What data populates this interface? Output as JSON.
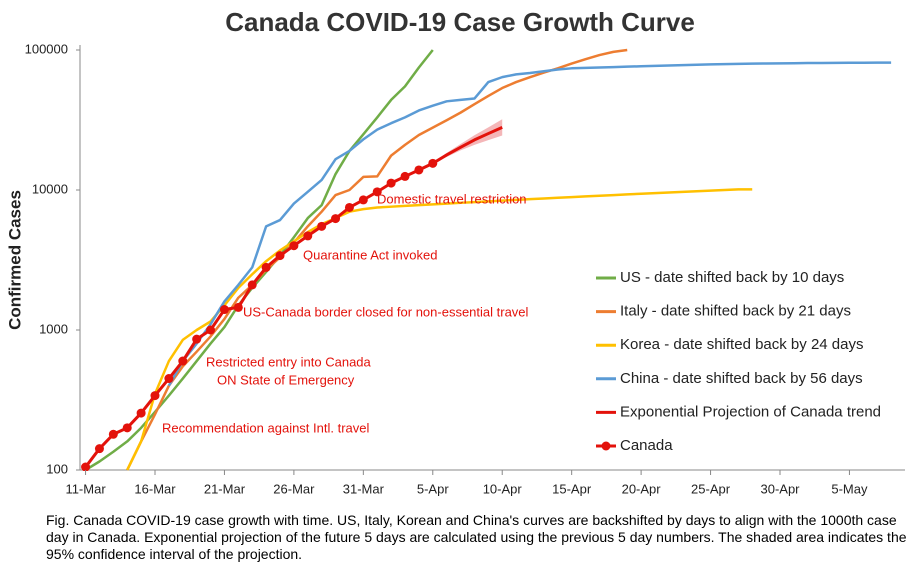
{
  "chart_data": {
    "type": "line",
    "title": "Canada COVID-19 Case Growth Curve",
    "y_label": "Confirmed Cases",
    "log_y": true,
    "xlim": [
      -0.4,
      59
    ],
    "xticks": [
      {
        "value": 0,
        "label": "11-Mar"
      },
      {
        "value": 5,
        "label": "16-Mar"
      },
      {
        "value": 10,
        "label": "21-Mar"
      },
      {
        "value": 15,
        "label": "26-Mar"
      },
      {
        "value": 20,
        "label": "31-Mar"
      },
      {
        "value": 25,
        "label": "5-Apr"
      },
      {
        "value": 30,
        "label": "10-Apr"
      },
      {
        "value": 35,
        "label": "15-Apr"
      },
      {
        "value": 40,
        "label": "20-Apr"
      },
      {
        "value": 45,
        "label": "25-Apr"
      },
      {
        "value": 50,
        "label": "30-Apr"
      },
      {
        "value": 55,
        "label": "5-May"
      }
    ],
    "ylim": [
      100,
      100000
    ],
    "yticks": [
      100,
      1000,
      10000,
      100000
    ],
    "series": [
      {
        "name": "US - date shifted back by 10 days",
        "color": "#70ad47",
        "x": [
          0,
          1,
          2,
          3,
          4,
          5,
          6,
          7,
          8,
          9,
          10,
          11,
          12,
          13,
          14,
          15,
          16,
          17,
          18,
          19,
          20,
          21,
          22,
          23,
          24,
          25
        ],
        "values": [
          100,
          115,
          135,
          160,
          200,
          260,
          340,
          450,
          600,
          800,
          1050,
          1500,
          2000,
          2600,
          3400,
          4600,
          6300,
          7800,
          13000,
          19000,
          25000,
          33000,
          44000,
          55000,
          75000,
          100000
        ]
      },
      {
        "name": "Italy - date shifted back by 21 days",
        "color": "#ed7d31",
        "x": [
          3,
          4,
          5,
          6,
          7,
          8,
          9,
          10,
          11,
          12,
          13,
          14,
          15,
          16,
          17,
          18,
          19,
          20,
          21,
          22,
          23,
          24,
          25,
          26,
          27,
          28,
          29,
          30,
          31,
          32,
          33,
          34,
          35,
          36,
          37,
          38,
          39
        ],
        "values": [
          100,
          160,
          250,
          400,
          550,
          700,
          900,
          1200,
          1700,
          2100,
          2700,
          3300,
          4200,
          5500,
          7000,
          9200,
          10000,
          12400,
          12500,
          17600,
          21000,
          24700,
          27900,
          31500,
          35700,
          41000,
          47000,
          53500,
          59000,
          63900,
          69000,
          74000,
          80000,
          86000,
          92000,
          97000,
          100000
        ]
      },
      {
        "name": "Korea - date shifted back by 24 days",
        "color": "#ffc000",
        "x": [
          3,
          4,
          5,
          6,
          7,
          8,
          9,
          10,
          11,
          12,
          13,
          14,
          15,
          16,
          17,
          18,
          19,
          20,
          21,
          22,
          23,
          24,
          25,
          26,
          27,
          28,
          29,
          30,
          31,
          32,
          33,
          34,
          35,
          36,
          37,
          38,
          39,
          40,
          41,
          42,
          43,
          44,
          45,
          46,
          47,
          48
        ],
        "values": [
          100,
          160,
          350,
          600,
          850,
          1000,
          1150,
          1500,
          2000,
          2500,
          3100,
          3700,
          4300,
          5000,
          5700,
          6300,
          7000,
          7300,
          7500,
          7600,
          7700,
          7800,
          7900,
          8000,
          8100,
          8200,
          8300,
          8400,
          8500,
          8600,
          8700,
          8800,
          8900,
          9000,
          9100,
          9200,
          9300,
          9400,
          9500,
          9600,
          9700,
          9800,
          9900,
          10000,
          10100,
          10100
        ]
      },
      {
        "name": "China - date shifted back by 56 days",
        "color": "#5b9bd5",
        "x": [
          6,
          7,
          8,
          9,
          10,
          11,
          12,
          13,
          14,
          15,
          16,
          17,
          18,
          19,
          20,
          21,
          22,
          23,
          24,
          25,
          26,
          27,
          28,
          29,
          30,
          31,
          32,
          33,
          34,
          35,
          36,
          37,
          38,
          39,
          40,
          41,
          42,
          43,
          44,
          45,
          46,
          47,
          48,
          49,
          50,
          51,
          52,
          53,
          54,
          55,
          56,
          57,
          58
        ],
        "values": [
          400,
          600,
          800,
          1100,
          1600,
          2100,
          2800,
          5500,
          6100,
          8000,
          9700,
          11800,
          16600,
          19000,
          23000,
          27000,
          30000,
          33000,
          37000,
          40000,
          43000,
          44000,
          45000,
          59000,
          64000,
          67000,
          68500,
          70500,
          72500,
          74000,
          74500,
          75000,
          75500,
          76000,
          76500,
          77000,
          77500,
          78000,
          78500,
          79000,
          79300,
          79600,
          79900,
          80100,
          80300,
          80500,
          80700,
          80800,
          80900,
          81000,
          81100,
          81200,
          81300
        ]
      },
      {
        "name": "Exponential Projection of Canada trend",
        "color": "#e3120b",
        "band_color": "#f4b6b8",
        "x": [
          25,
          26,
          27,
          28,
          29,
          30
        ],
        "values": [
          15500,
          17800,
          20200,
          22800,
          25300,
          28000
        ],
        "lower": [
          15500,
          17200,
          19200,
          21000,
          22700,
          24500
        ],
        "upper": [
          15500,
          18400,
          21300,
          24600,
          28000,
          32000
        ]
      },
      {
        "name": "Canada",
        "color": "#e3120b",
        "marker": true,
        "x": [
          0,
          1,
          2,
          3,
          4,
          5,
          6,
          7,
          8,
          9,
          10,
          11,
          12,
          13,
          14,
          15,
          16,
          17,
          18,
          19,
          20,
          21,
          22,
          23,
          24,
          25
        ],
        "values": [
          105,
          142,
          180,
          200,
          255,
          340,
          450,
          600,
          860,
          1000,
          1400,
          1450,
          2100,
          2800,
          3400,
          4000,
          4700,
          5500,
          6250,
          7500,
          8500,
          9700,
          11200,
          12500,
          13900,
          15500
        ]
      }
    ],
    "annotations": [
      "Domestic travel restriction",
      "Quarantine Act invoked",
      "US-Canada border closed for non-essential travel",
      "Restricted entry into Canada",
      "ON State of Emergency",
      "Recommendation against Intl. travel"
    ],
    "annotation_color": "#e3120b",
    "caption": "Fig. Canada COVID-19 case growth with time. US, Italy, Korean and China's curves are backshifted by days to align with the 1000th case day in Canada. Exponential projection of the future 5 days are calculated using the previous 5 day numbers. The shaded area indicates the 95% confidence interval of the projection."
  }
}
